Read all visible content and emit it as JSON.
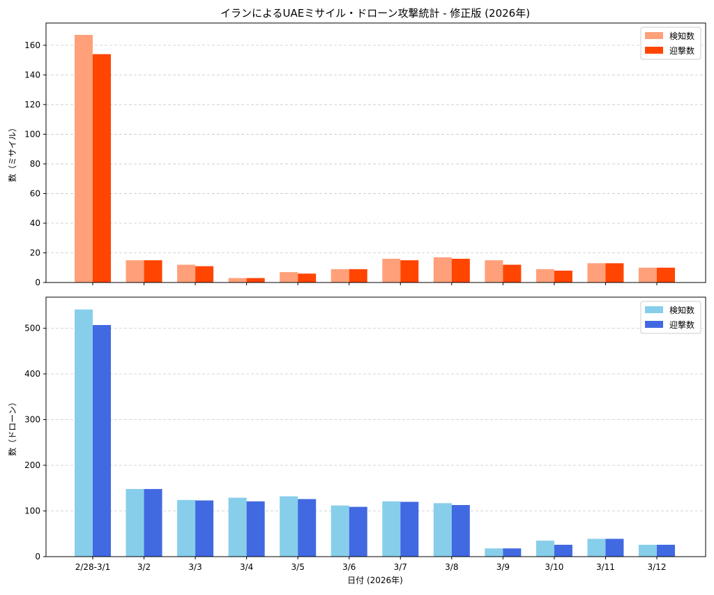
{
  "chart_data": {
    "title": "イランによるUAEミサイル・ドローン攻撃統計 - 修正版 (2026年)",
    "xlabel": "日付 (2026年)",
    "categories": [
      "2/28-3/1",
      "3/2",
      "3/3",
      "3/4",
      "3/5",
      "3/6",
      "3/7",
      "3/8",
      "3/9",
      "3/10",
      "3/11",
      "3/12"
    ],
    "panels": [
      {
        "type": "bar",
        "ylabel": "数（ミサイル）",
        "ylim": [
          0,
          175
        ],
        "yticks": [
          0,
          20,
          40,
          60,
          80,
          100,
          120,
          140,
          160
        ],
        "grid": true,
        "legend": "top-right",
        "series": [
          {
            "name": "検知数",
            "color": "#FFA07A",
            "values": [
              167,
              15,
              12,
              3,
              7,
              9,
              16,
              17,
              15,
              9,
              13,
              10
            ]
          },
          {
            "name": "迎撃数",
            "color": "#FF4500",
            "values": [
              154,
              15,
              11,
              3,
              6,
              9,
              15,
              16,
              12,
              8,
              13,
              10
            ]
          }
        ]
      },
      {
        "type": "bar",
        "ylabel": "数（ドローン）",
        "ylim": [
          0,
          568
        ],
        "yticks": [
          0,
          100,
          200,
          300,
          400,
          500
        ],
        "grid": true,
        "legend": "top-right",
        "series": [
          {
            "name": "検知数",
            "color": "#87CEEB",
            "values": [
              541,
              148,
              124,
              129,
              132,
              112,
              121,
              117,
              18,
              35,
              39,
              26
            ]
          },
          {
            "name": "迎撃数",
            "color": "#4169E1",
            "values": [
              507,
              148,
              123,
              121,
              126,
              109,
              120,
              113,
              18,
              26,
              39,
              26
            ]
          }
        ]
      }
    ]
  }
}
